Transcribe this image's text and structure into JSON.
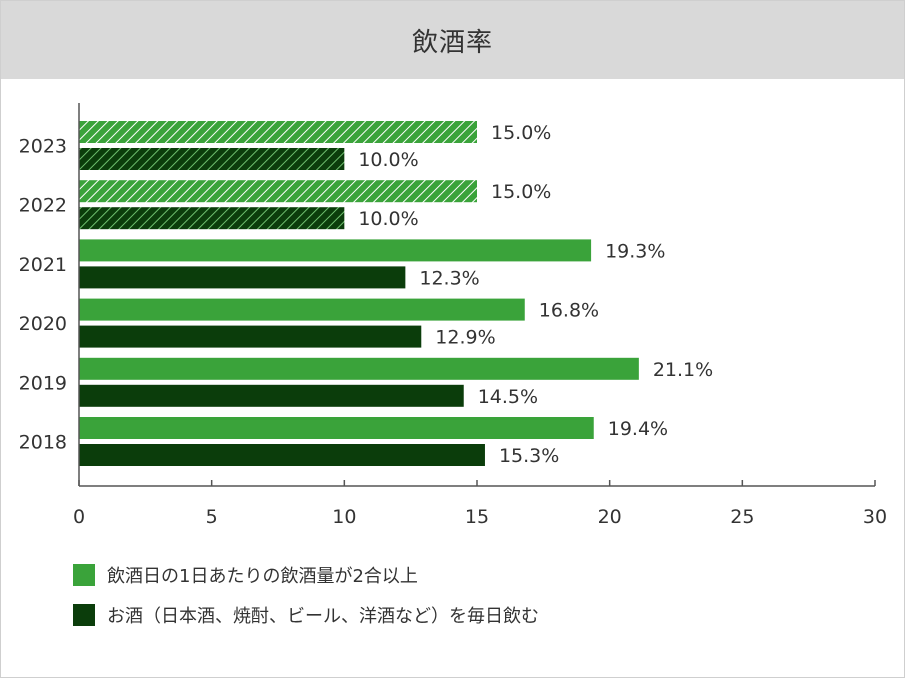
{
  "chart_data": {
    "type": "bar",
    "orientation": "horizontal",
    "title": "飲酒率",
    "categories": [
      "2023",
      "2022",
      "2021",
      "2020",
      "2019",
      "2018"
    ],
    "series": [
      {
        "name": "飲酒日の1日あたりの飲酒量が2合以上",
        "values": [
          15.0,
          15.0,
          19.3,
          16.8,
          21.1,
          19.4
        ],
        "labels": [
          "15.0%",
          "15.0%",
          "19.3%",
          "16.8%",
          "21.1%",
          "19.4%"
        ],
        "hatched": [
          true,
          true,
          false,
          false,
          false,
          false
        ],
        "color": "#3aa33a"
      },
      {
        "name": "お酒（日本酒、焼酎、ビール、洋酒など）を毎日飲む",
        "values": [
          10.0,
          10.0,
          12.3,
          12.9,
          14.5,
          15.3
        ],
        "labels": [
          "10.0%",
          "10.0%",
          "12.3%",
          "12.9%",
          "14.5%",
          "15.3%"
        ],
        "hatched": [
          true,
          true,
          false,
          false,
          false,
          false
        ],
        "color": "#0b3d0b"
      }
    ],
    "x_ticks": [
      "0",
      "5",
      "10",
      "15",
      "20",
      "25",
      "30"
    ],
    "xlim": [
      0,
      30
    ],
    "grid": false,
    "legend_position": "bottom-left"
  }
}
